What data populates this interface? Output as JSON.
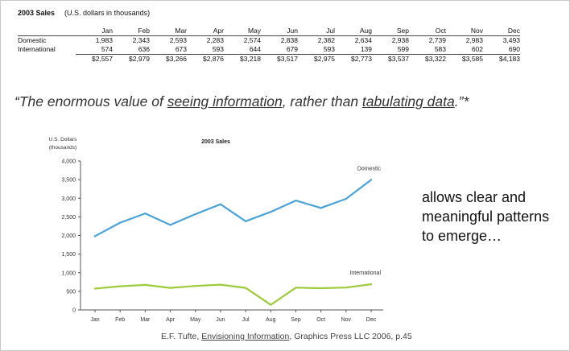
{
  "table": {
    "title": "2003 Sales",
    "subtitle": "(U.S. dollars in thousands)",
    "months": [
      "Jan",
      "Feb",
      "Mar",
      "Apr",
      "May",
      "Jun",
      "Jul",
      "Aug",
      "Sep",
      "Oct",
      "Nov",
      "Dec"
    ],
    "rows": [
      {
        "label": "Domestic",
        "values": [
          "1,983",
          "2,343",
          "2,593",
          "2,283",
          "2,574",
          "2,838",
          "2,382",
          "2,634",
          "2,938",
          "2,739",
          "2,983",
          "3,493"
        ]
      },
      {
        "label": "International",
        "values": [
          "574",
          "636",
          "673",
          "593",
          "644",
          "679",
          "593",
          "139",
          "599",
          "583",
          "602",
          "690"
        ]
      }
    ],
    "totals": [
      "$2,557",
      "$2,979",
      "$3,266",
      "$2,876",
      "$3,218",
      "$3,517",
      "$2,975",
      "$2,773",
      "$3,537",
      "$3,322",
      "$3,585",
      "$4,183"
    ]
  },
  "quote": {
    "open": "“The enormous value of ",
    "u1": "seeing information",
    "mid": ", rather than ",
    "u2": "tabulating data",
    "close": ".”*"
  },
  "side_text": "allows clear and meaningful patterns to emerge…",
  "citation": {
    "pre": "E.F. Tufte, ",
    "book": "Envisioning Information",
    "post": ", Graphics Press LLC 2006, p.45"
  },
  "chart_data": {
    "type": "line",
    "title": "2003 Sales",
    "ylabel_line1": "U.S. Dollars",
    "ylabel_line2": "(thousands)",
    "categories": [
      "Jan",
      "Feb",
      "Mar",
      "Apr",
      "May",
      "Jun",
      "Jul",
      "Aug",
      "Sep",
      "Oct",
      "Nov",
      "Dec"
    ],
    "y_ticks": [
      0,
      500,
      1000,
      1500,
      2000,
      2500,
      3000,
      3500,
      4000
    ],
    "y_tick_labels": [
      "0",
      "500",
      "1,000",
      "1,500",
      "2,000",
      "2,500",
      "3,000",
      "3,500",
      "4,000"
    ],
    "ylim": [
      0,
      4000
    ],
    "grid": false,
    "series": [
      {
        "name": "Domestic",
        "color": "#4aa3d8",
        "values": [
          1983,
          2343,
          2593,
          2283,
          2574,
          2838,
          2382,
          2634,
          2938,
          2739,
          2983,
          3493
        ]
      },
      {
        "name": "International",
        "color": "#9ecb3c",
        "values": [
          574,
          636,
          673,
          593,
          644,
          679,
          593,
          139,
          599,
          583,
          602,
          690
        ]
      }
    ]
  }
}
